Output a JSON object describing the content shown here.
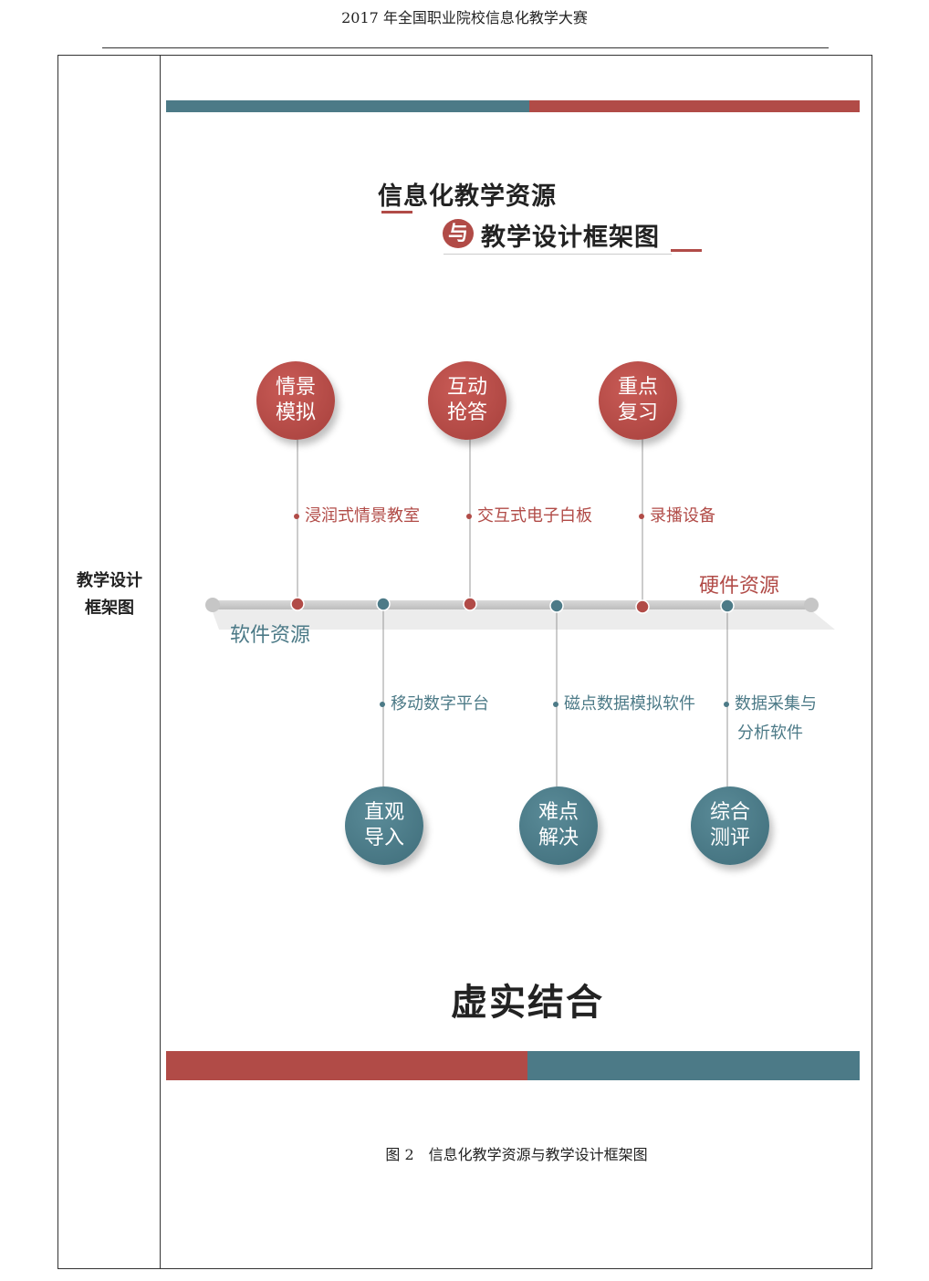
{
  "header": {
    "title": "2017 年全国职业院校信息化教学大赛"
  },
  "row": {
    "label_line1": "教学设计",
    "label_line2": "框架图"
  },
  "diagram": {
    "title_line1": "信息化教学资源",
    "conjunction": "与",
    "title_line2": "教学设计框架图",
    "axis_left_label": "软件资源",
    "axis_right_label": "硬件资源",
    "colors": {
      "red": "#b14b47",
      "teal": "#4c7a87"
    },
    "top_nodes": [
      {
        "circle_line1": "情景",
        "circle_line2": "模拟",
        "resource": "浸润式情景教室"
      },
      {
        "circle_line1": "互动",
        "circle_line2": "抢答",
        "resource": "交互式电子白板"
      },
      {
        "circle_line1": "重点",
        "circle_line2": "复习",
        "resource": "录播设备"
      }
    ],
    "bottom_nodes": [
      {
        "circle_line1": "直观",
        "circle_line2": "导入",
        "resource": "移动数字平台",
        "resource_line2": ""
      },
      {
        "circle_line1": "难点",
        "circle_line2": "解决",
        "resource": "磁点数据模拟软件",
        "resource_line2": ""
      },
      {
        "circle_line1": "综合",
        "circle_line2": "测评",
        "resource": "数据采集与",
        "resource_line2": "分析软件"
      }
    ],
    "slogan": "虚实结合"
  },
  "caption": "图 2　信息化教学资源与教学设计框架图"
}
